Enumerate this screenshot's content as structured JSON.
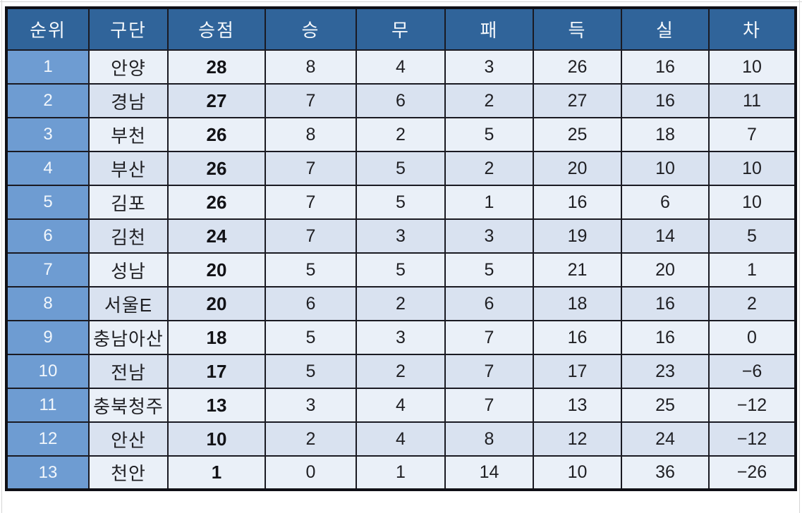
{
  "table": {
    "columns": [
      {
        "key": "rank",
        "label": "순위"
      },
      {
        "key": "club",
        "label": "구단"
      },
      {
        "key": "points",
        "label": "승점"
      },
      {
        "key": "wins",
        "label": "승"
      },
      {
        "key": "draws",
        "label": "무"
      },
      {
        "key": "losses",
        "label": "패"
      },
      {
        "key": "goals_for",
        "label": "득"
      },
      {
        "key": "goals_against",
        "label": "실"
      },
      {
        "key": "goal_diff",
        "label": "차"
      }
    ],
    "rows": [
      {
        "rank": "1",
        "club": "안양",
        "points": "28",
        "wins": "8",
        "draws": "4",
        "losses": "3",
        "goals_for": "26",
        "goals_against": "16",
        "goal_diff": "10"
      },
      {
        "rank": "2",
        "club": "경남",
        "points": "27",
        "wins": "7",
        "draws": "6",
        "losses": "2",
        "goals_for": "27",
        "goals_against": "16",
        "goal_diff": "11"
      },
      {
        "rank": "3",
        "club": "부천",
        "points": "26",
        "wins": "8",
        "draws": "2",
        "losses": "5",
        "goals_for": "25",
        "goals_against": "18",
        "goal_diff": "7"
      },
      {
        "rank": "4",
        "club": "부산",
        "points": "26",
        "wins": "7",
        "draws": "5",
        "losses": "2",
        "goals_for": "20",
        "goals_against": "10",
        "goal_diff": "10"
      },
      {
        "rank": "5",
        "club": "김포",
        "points": "26",
        "wins": "7",
        "draws": "5",
        "losses": "1",
        "goals_for": "16",
        "goals_against": "6",
        "goal_diff": "10"
      },
      {
        "rank": "6",
        "club": "김천",
        "points": "24",
        "wins": "7",
        "draws": "3",
        "losses": "3",
        "goals_for": "19",
        "goals_against": "14",
        "goal_diff": "5"
      },
      {
        "rank": "7",
        "club": "성남",
        "points": "20",
        "wins": "5",
        "draws": "5",
        "losses": "5",
        "goals_for": "21",
        "goals_against": "20",
        "goal_diff": "1"
      },
      {
        "rank": "8",
        "club": "서울E",
        "points": "20",
        "wins": "6",
        "draws": "2",
        "losses": "6",
        "goals_for": "18",
        "goals_against": "16",
        "goal_diff": "2"
      },
      {
        "rank": "9",
        "club": "충남아산",
        "points": "18",
        "wins": "5",
        "draws": "3",
        "losses": "7",
        "goals_for": "16",
        "goals_against": "16",
        "goal_diff": "0"
      },
      {
        "rank": "10",
        "club": "전남",
        "points": "17",
        "wins": "5",
        "draws": "2",
        "losses": "7",
        "goals_for": "17",
        "goals_against": "23",
        "goal_diff": "−6"
      },
      {
        "rank": "11",
        "club": "충북청주",
        "points": "13",
        "wins": "3",
        "draws": "4",
        "losses": "7",
        "goals_for": "13",
        "goals_against": "25",
        "goal_diff": "−12"
      },
      {
        "rank": "12",
        "club": "안산",
        "points": "10",
        "wins": "2",
        "draws": "4",
        "losses": "8",
        "goals_for": "12",
        "goals_against": "24",
        "goal_diff": "−12"
      },
      {
        "rank": "13",
        "club": "천안",
        "points": "1",
        "wins": "0",
        "draws": "1",
        "losses": "14",
        "goals_for": "10",
        "goals_against": "36",
        "goal_diff": "−26"
      }
    ]
  },
  "colors": {
    "header_bg": "#30649a",
    "header_text": "#f4f8fc",
    "rank_bg": "#6e9cd2",
    "rank_text": "#f2f7fc",
    "row_light": "#eaf0f8",
    "row_dark": "#d9e2f0",
    "border": "#1a1a22",
    "border_heavy": "#101016",
    "text": "#1f1f23"
  }
}
